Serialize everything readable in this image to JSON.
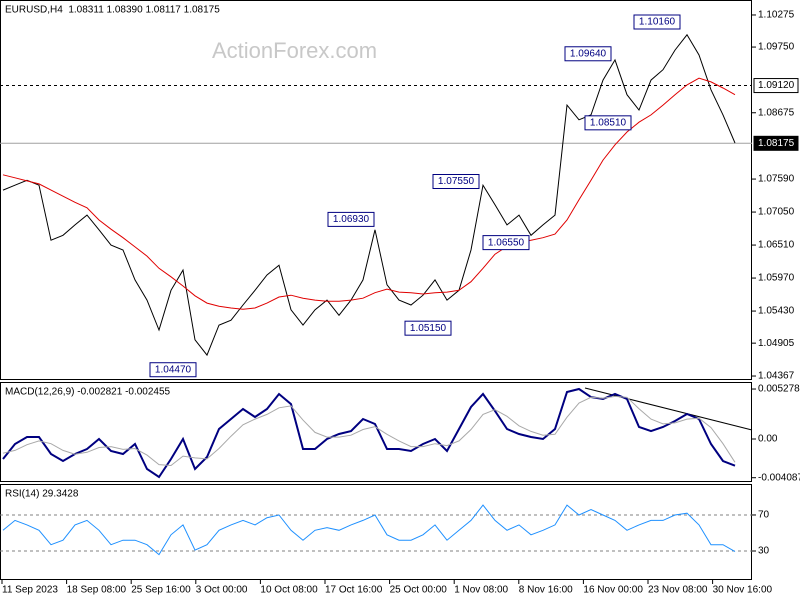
{
  "chart_data": [
    {
      "type": "line",
      "title": "EURUSD,H4  1.08311 1.08390 1.08117 1.08175",
      "watermark": "ActionForex.com",
      "ylim": [
        1.04302,
        1.1052
      ],
      "yticks": [
        1.10275,
        {
          "value": 1.0975,
          "label": "1.09750"
        },
        1.08675,
        {
          "value": 1.0759,
          "label": "1.07590"
        },
        {
          "value": 1.0705,
          "label": "1.07050"
        },
        {
          "value": 1.0651,
          "label": "1.06510"
        },
        {
          "value": 1.0597,
          "label": "1.05970"
        },
        {
          "value": 1.0543,
          "label": "1.05430"
        },
        1.04905,
        1.04367
      ],
      "grid": false,
      "levels": [
        {
          "value": 1.0912,
          "label": "1.09120",
          "style": "dashed"
        },
        {
          "value": 1.08175,
          "label": "1.08175",
          "style": "solid"
        }
      ],
      "annotations": [
        {
          "value": 1.1016,
          "label": "1.10160"
        },
        {
          "value": 1.0964,
          "label": "1.09640"
        },
        {
          "value": 1.0851,
          "label": "1.08510"
        },
        {
          "value": 1.0755,
          "label": "1.07550"
        },
        {
          "value": 1.0693,
          "label": "1.06930"
        },
        {
          "value": 1.0655,
          "label": "1.06550"
        },
        {
          "value": 1.0515,
          "label": "1.05150"
        },
        {
          "value": 1.0447,
          "label": "1.04470"
        }
      ],
      "series": [
        {
          "color": "#000000",
          "width": 1,
          "values": [
            1.0741,
            1.0749,
            1.0757,
            1.0749,
            1.0659,
            1.0667,
            1.0684,
            1.07,
            1.0676,
            1.0651,
            1.0643,
            1.0594,
            1.0561,
            1.0512,
            1.0577,
            1.061,
            1.0496,
            1.0471,
            1.052,
            1.0528,
            1.0553,
            1.0577,
            1.0602,
            1.0618,
            1.0545,
            1.052,
            1.0545,
            1.0561,
            1.0536,
            1.0561,
            1.0594,
            1.0676,
            1.0586,
            1.0561,
            1.0553,
            1.0569,
            1.0594,
            1.0561,
            1.0577,
            1.0643,
            1.0749,
            1.0717,
            1.0684,
            1.07,
            1.0667,
            1.0684,
            1.07,
            1.088,
            1.0856,
            1.0864,
            1.0921,
            1.0954,
            1.0897,
            1.0872,
            1.0921,
            1.0938,
            1.097,
            1.0995,
            1.0962,
            1.0905,
            1.0864,
            1.0818
          ]
        },
        {
          "color": "#e00000",
          "width": 1,
          "values": [
            1.0766,
            1.0761,
            1.0756,
            1.0751,
            1.0741,
            1.0731,
            1.0721,
            1.0712,
            1.0692,
            1.0677,
            1.0663,
            1.0648,
            1.0633,
            1.0613,
            1.0599,
            1.0584,
            1.0568,
            1.0556,
            1.0551,
            1.0548,
            1.0546,
            1.0548,
            1.0556,
            1.0566,
            1.0569,
            1.0564,
            1.0561,
            1.0559,
            1.0559,
            1.0561,
            1.0564,
            1.0573,
            1.0579,
            1.0574,
            1.0573,
            1.0571,
            1.0573,
            1.0574,
            1.0577,
            1.0591,
            1.0613,
            1.0636,
            1.0649,
            1.0656,
            1.0659,
            1.0663,
            1.0669,
            1.0692,
            1.0725,
            1.0757,
            1.079,
            1.0815,
            1.0836,
            1.0852,
            1.0864,
            1.088,
            1.0897,
            1.0913,
            1.0924,
            1.0918,
            1.0908,
            1.0897
          ]
        }
      ]
    },
    {
      "type": "line",
      "title": "MACD(12,26,9) -0.002821 -0.002455",
      "ylim": [
        -0.00454,
        0.00602
      ],
      "yticks": [
        0.005278,
        {
          "value": 0,
          "label": "0.00"
        },
        -0.004087
      ],
      "grid": false,
      "series": [
        {
          "color": "#000080",
          "width": 2,
          "values": [
            -0.00211,
            -0.00053,
            0.00021,
            0.00021,
            -0.00158,
            -0.00232,
            -0.00158,
            -0.00106,
            0,
            -0.00127,
            -0.00158,
            -0.00053,
            -0.00317,
            -0.00401,
            -0.00211,
            0,
            -0.00317,
            -0.0019,
            0.00106,
            0.00211,
            0.00317,
            0.00232,
            0.00317,
            0.00475,
            0.00369,
            -0.00106,
            -0.00106,
            0,
            0.00053,
            0.00084,
            0.00211,
            0.00158,
            -0.00106,
            -0.00106,
            -0.00127,
            -0.00053,
            0,
            -0.00127,
            0.00106,
            0.00338,
            0.00475,
            0.00296,
            0.00106,
            0.00053,
            0.00021,
            0,
            0.00106,
            0.00496,
            0.00528,
            0.00443,
            0.00422,
            0.00475,
            0.00422,
            0.00127,
            0.00084,
            0.00127,
            0.0019,
            0.00264,
            0.00211,
            -0.00053,
            -0.00232,
            -0.00282
          ]
        },
        {
          "color": "#a9a9a9",
          "width": 1,
          "values": [
            -0.0015,
            -0.0012,
            -0.0006,
            -0.0002,
            -0.0005,
            -0.0012,
            -0.0016,
            -0.0014,
            -0.0009,
            -0.0008,
            -0.0011,
            -0.001,
            -0.0017,
            -0.0027,
            -0.0028,
            -0.0018,
            -0.002,
            -0.0021,
            -0.001,
            0.0003,
            0.0015,
            0.0021,
            0.0026,
            0.0033,
            0.0035,
            0.002,
            0.0007,
            0.0002,
            0.0002,
            0.0004,
            0.001,
            0.0013,
            0.0005,
            -0.0002,
            -0.0008,
            -0.0008,
            -0.0005,
            -0.0007,
            -0.0002,
            0.001,
            0.0026,
            0.0031,
            0.0024,
            0.0014,
            0.0008,
            0.0004,
            0.0005,
            0.0023,
            0.0038,
            0.0044,
            0.0043,
            0.0045,
            0.0044,
            0.0032,
            0.0021,
            0.0016,
            0.0017,
            0.0021,
            0.0022,
            0.0012,
            -0.0005,
            -0.00246
          ]
        }
      ]
    },
    {
      "type": "line",
      "title": "RSI(14) 29.3428",
      "ylim": [
        -2.2,
        104.4
      ],
      "yticks": [
        70,
        30
      ],
      "grid": true,
      "grid_style": "dashed",
      "x_labels": [
        "11 Sep 2023",
        "18 Sep 08:00",
        "25 Sep 16:00",
        "3 Oct 00:00",
        "10 Oct 08:00",
        "17 Oct 16:00",
        "25 Oct 00:00",
        "1 Nov 08:00",
        "8 Nov 16:00",
        "16 Nov 00:00",
        "23 Nov 08:00",
        "30 Nov 16:00"
      ],
      "series": [
        {
          "color": "#1e90ff",
          "width": 1,
          "values": [
            53,
            64,
            59,
            53,
            37,
            42,
            59,
            64,
            53,
            37,
            42,
            42,
            37,
            26,
            48,
            59,
            31,
            37,
            53,
            59,
            64,
            59,
            67,
            70,
            53,
            42,
            53,
            56,
            53,
            59,
            64,
            70,
            48,
            42,
            42,
            48,
            59,
            42,
            53,
            64,
            81,
            64,
            53,
            59,
            48,
            53,
            59,
            81,
            70,
            76,
            70,
            64,
            53,
            59,
            64,
            64,
            70,
            72,
            59,
            37,
            37,
            29.34
          ]
        }
      ]
    }
  ]
}
